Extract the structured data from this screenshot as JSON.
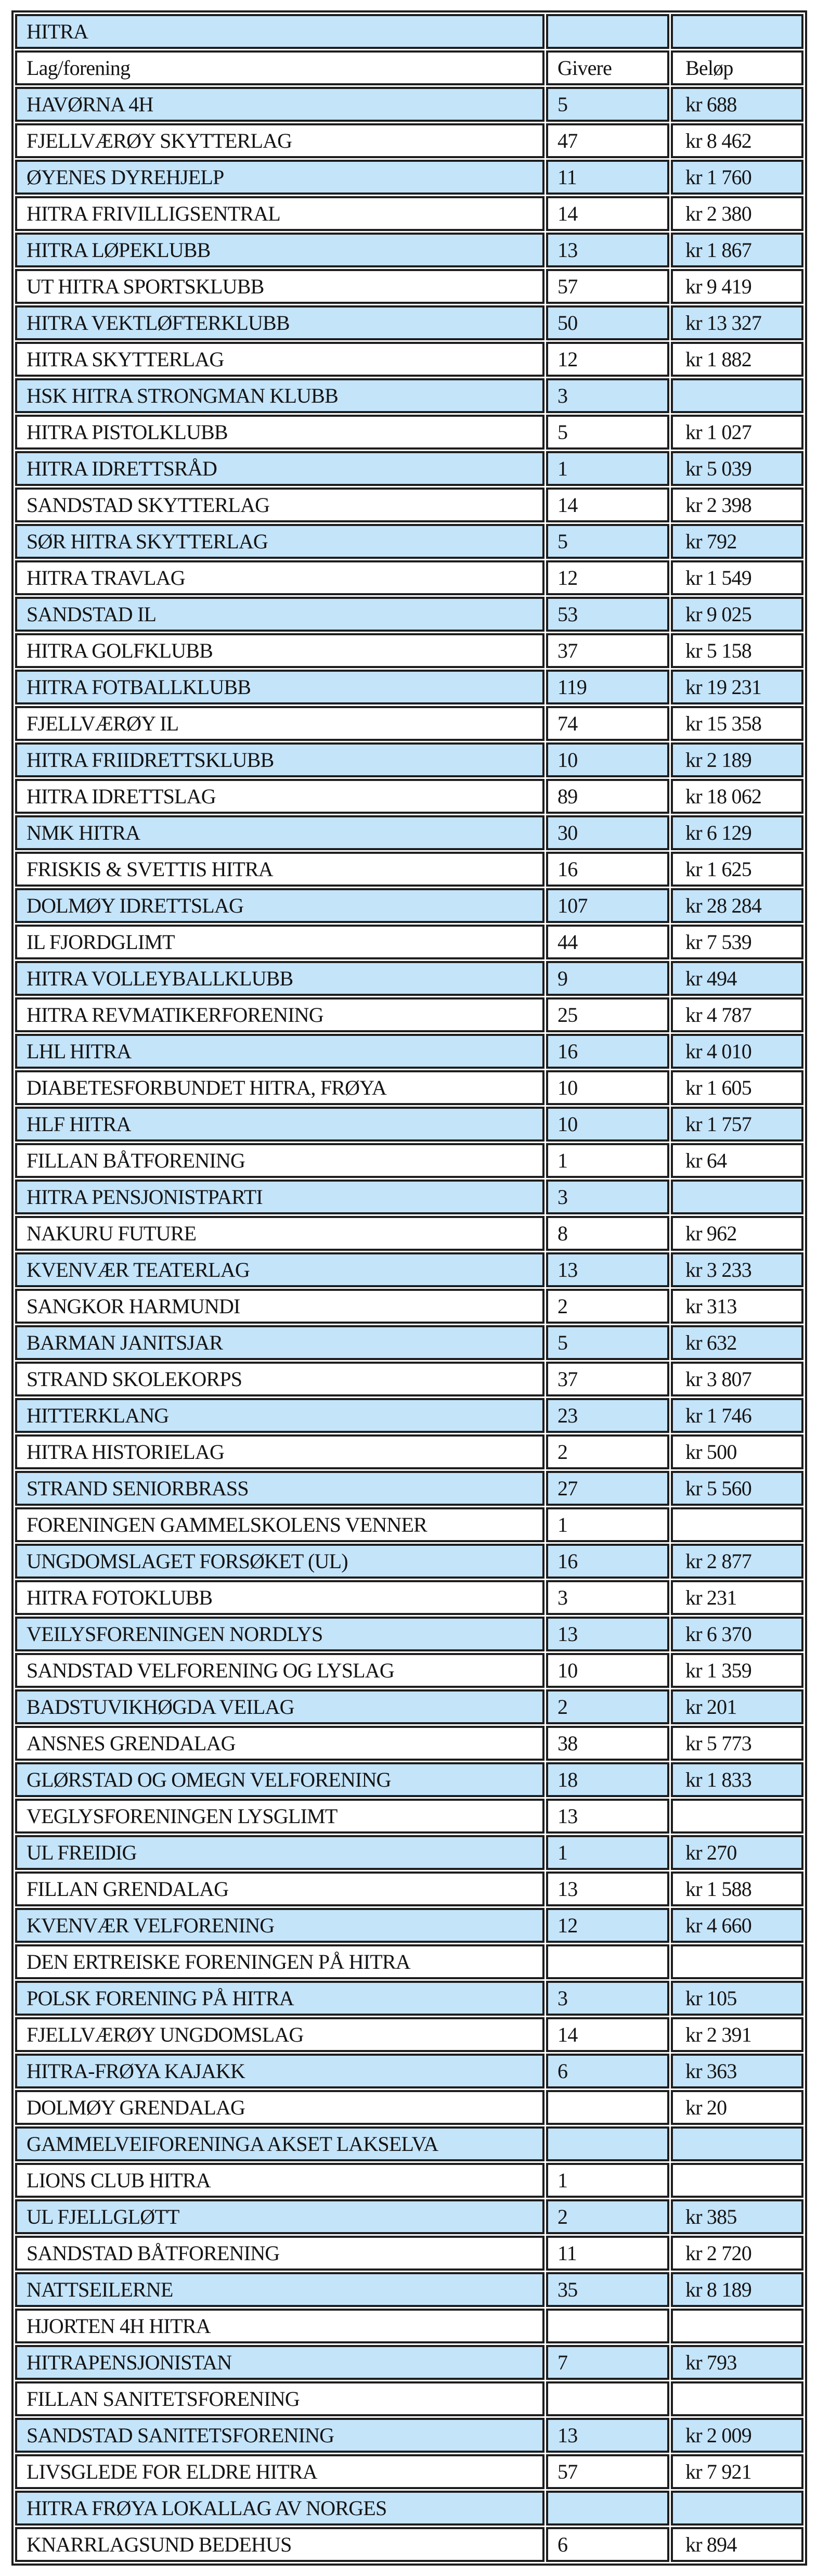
{
  "table": {
    "title": "HITRA",
    "columns": [
      "Lag/forening",
      "Givere",
      "Beløp"
    ],
    "rows": [
      {
        "name": "HAVØRNA 4H",
        "givere": "5",
        "belop": "kr 688"
      },
      {
        "name": "FJELLVÆRØY SKYTTERLAG",
        "givere": "47",
        "belop": "kr 8 462"
      },
      {
        "name": "ØYENES DYREHJELP",
        "givere": "11",
        "belop": "kr 1 760"
      },
      {
        "name": "HITRA FRIVILLIGSENTRAL",
        "givere": "14",
        "belop": "kr 2 380"
      },
      {
        "name": "HITRA LØPEKLUBB",
        "givere": "13",
        "belop": "kr 1 867"
      },
      {
        "name": "UT HITRA SPORTSKLUBB",
        "givere": "57",
        "belop": "kr 9 419"
      },
      {
        "name": "HITRA VEKTLØFTERKLUBB",
        "givere": "50",
        "belop": "kr 13 327"
      },
      {
        "name": "HITRA SKYTTERLAG",
        "givere": "12",
        "belop": "kr 1 882"
      },
      {
        "name": "HSK HITRA STRONGMAN KLUBB",
        "givere": "3",
        "belop": ""
      },
      {
        "name": "HITRA PISTOLKLUBB",
        "givere": "5",
        "belop": "kr 1 027"
      },
      {
        "name": "HITRA IDRETTSRÅD",
        "givere": "1",
        "belop": "kr 5 039"
      },
      {
        "name": "SANDSTAD SKYTTERLAG",
        "givere": "14",
        "belop": "kr 2 398"
      },
      {
        "name": "SØR HITRA SKYTTERLAG",
        "givere": "5",
        "belop": "kr 792"
      },
      {
        "name": "HITRA TRAVLAG",
        "givere": "12",
        "belop": "kr 1 549"
      },
      {
        "name": "SANDSTAD IL",
        "givere": "53",
        "belop": "kr 9 025"
      },
      {
        "name": "HITRA GOLFKLUBB",
        "givere": "37",
        "belop": "kr 5 158"
      },
      {
        "name": "HITRA FOTBALLKLUBB",
        "givere": "119",
        "belop": "kr 19 231"
      },
      {
        "name": "FJELLVÆRØY IL",
        "givere": "74",
        "belop": "kr 15 358"
      },
      {
        "name": "HITRA FRIIDRETTSKLUBB",
        "givere": "10",
        "belop": "kr 2 189"
      },
      {
        "name": "HITRA IDRETTSLAG",
        "givere": "89",
        "belop": "kr 18 062"
      },
      {
        "name": "NMK HITRA",
        "givere": "30",
        "belop": "kr 6 129"
      },
      {
        "name": "FRISKIS & SVETTIS HITRA",
        "givere": "16",
        "belop": "kr 1 625"
      },
      {
        "name": "DOLMØY IDRETTSLAG",
        "givere": "107",
        "belop": "kr 28 284"
      },
      {
        "name": "IL FJORDGLIMT",
        "givere": "44",
        "belop": "kr 7 539"
      },
      {
        "name": "HITRA VOLLEYBALLKLUBB",
        "givere": "9",
        "belop": "kr 494"
      },
      {
        "name": "HITRA REVMATIKERFORENING",
        "givere": "25",
        "belop": "kr 4 787"
      },
      {
        "name": "LHL HITRA",
        "givere": "16",
        "belop": "kr 4 010"
      },
      {
        "name": "DIABETESFORBUNDET HITRA, FRØYA",
        "givere": "10",
        "belop": "kr 1 605"
      },
      {
        "name": "HLF HITRA",
        "givere": "10",
        "belop": "kr 1 757"
      },
      {
        "name": "FILLAN BÅTFORENING",
        "givere": "1",
        "belop": "kr 64"
      },
      {
        "name": "HITRA PENSJONISTPARTI",
        "givere": "3",
        "belop": ""
      },
      {
        "name": "NAKURU FUTURE",
        "givere": "8",
        "belop": "kr 962"
      },
      {
        "name": "KVENVÆR TEATERLAG",
        "givere": "13",
        "belop": "kr 3 233"
      },
      {
        "name": "SANGKOR HARMUNDI",
        "givere": "2",
        "belop": "kr 313"
      },
      {
        "name": "BARMAN JANITSJAR",
        "givere": "5",
        "belop": "kr 632"
      },
      {
        "name": "STRAND SKOLEKORPS",
        "givere": "37",
        "belop": "kr 3 807"
      },
      {
        "name": "HITTERKLANG",
        "givere": "23",
        "belop": "kr 1 746"
      },
      {
        "name": "HITRA HISTORIELAG",
        "givere": "2",
        "belop": "kr 500"
      },
      {
        "name": "STRAND SENIORBRASS",
        "givere": "27",
        "belop": "kr 5 560"
      },
      {
        "name": "FORENINGEN GAMMELSKOLENS VENNER",
        "givere": "1",
        "belop": ""
      },
      {
        "name": "UNGDOMSLAGET FORSØKET (UL)",
        "givere": "16",
        "belop": "kr 2 877"
      },
      {
        "name": "HITRA FOTOKLUBB",
        "givere": "3",
        "belop": "kr 231"
      },
      {
        "name": "VEILYSFORENINGEN NORDLYS",
        "givere": "13",
        "belop": "kr 6 370"
      },
      {
        "name": "SANDSTAD VELFORENING OG LYSLAG",
        "givere": "10",
        "belop": "kr 1 359"
      },
      {
        "name": "BADSTUVIKHØGDA VEILAG",
        "givere": "2",
        "belop": "kr 201"
      },
      {
        "name": "ANSNES GRENDALAG",
        "givere": "38",
        "belop": "kr 5 773"
      },
      {
        "name": "GLØRSTAD OG OMEGN VELFORENING",
        "givere": "18",
        "belop": "kr 1 833"
      },
      {
        "name": "VEGLYSFORENINGEN LYSGLIMT",
        "givere": "13",
        "belop": ""
      },
      {
        "name": "UL FREIDIG",
        "givere": "1",
        "belop": "kr 270"
      },
      {
        "name": "FILLAN GRENDALAG",
        "givere": "13",
        "belop": "kr 1 588"
      },
      {
        "name": "KVENVÆR VELFORENING",
        "givere": "12",
        "belop": "kr 4 660"
      },
      {
        "name": "DEN ERTREISKE FORENINGEN PÅ HITRA",
        "givere": "",
        "belop": ""
      },
      {
        "name": "POLSK FORENING PÅ HITRA",
        "givere": "3",
        "belop": "kr 105"
      },
      {
        "name": "FJELLVÆRØY UNGDOMSLAG",
        "givere": "14",
        "belop": "kr 2 391"
      },
      {
        "name": "HITRA-FRØYA KAJAKK",
        "givere": "6",
        "belop": "kr 363"
      },
      {
        "name": "DOLMØY GRENDALAG",
        "givere": "",
        "belop": "kr 20"
      },
      {
        "name": "GAMMELVEIFORENINGA AKSET LAKSELVA",
        "givere": "",
        "belop": ""
      },
      {
        "name": "LIONS CLUB HITRA",
        "givere": "1",
        "belop": ""
      },
      {
        "name": "UL FJELLGLØTT",
        "givere": "2",
        "belop": "kr 385"
      },
      {
        "name": "SANDSTAD BÅTFORENING",
        "givere": "11",
        "belop": "kr 2 720"
      },
      {
        "name": "NATTSEILERNE",
        "givere": "35",
        "belop": "kr 8 189"
      },
      {
        "name": "HJORTEN 4H HITRA",
        "givere": "",
        "belop": ""
      },
      {
        "name": "HITRAPENSJONISTAN",
        "givere": "7",
        "belop": "kr 793"
      },
      {
        "name": "FILLAN SANITETSFORENING",
        "givere": "",
        "belop": ""
      },
      {
        "name": "SANDSTAD SANITETSFORENING",
        "givere": "13",
        "belop": "kr 2 009"
      },
      {
        "name": "LIVSGLEDE FOR ELDRE HITRA",
        "givere": "57",
        "belop": "kr 7 921"
      },
      {
        "name": "HITRA FRØYA LOKALLAG AV NORGES",
        "givere": "",
        "belop": ""
      },
      {
        "name": "KNARRLAGSUND BEDEHUS",
        "givere": "6",
        "belop": "kr 894"
      }
    ]
  },
  "colors": {
    "row_highlight": "#c4e4fa",
    "row_base": "#ffffff",
    "border": "#1d1d1d",
    "text": "#141414"
  }
}
